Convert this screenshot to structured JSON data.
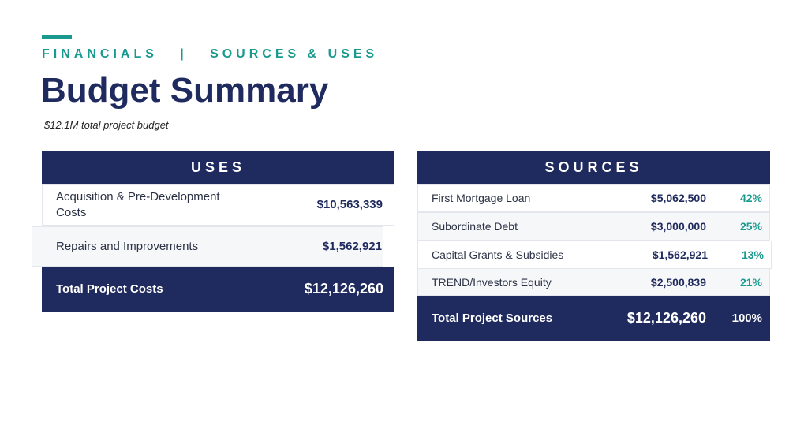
{
  "header": {
    "section": "FINANCIALS",
    "separator": "|",
    "subsection": "SOURCES & USES",
    "title": "Budget Summary",
    "subtitle": "$12.1M total project budget"
  },
  "uses": {
    "heading": "USES",
    "rows": [
      [
        "Acquisition & Pre-Development Costs",
        "$10,563,339"
      ],
      [
        "Repairs and Improvements",
        "$1,562,921"
      ]
    ],
    "total": [
      "Total Project Costs",
      "$12,126,260"
    ]
  },
  "sources": {
    "heading": "SOURCES",
    "rows": [
      [
        "First Mortgage Loan",
        "$5,062,500",
        "42%"
      ],
      [
        "Subordinate Debt",
        "$3,000,000",
        "25%"
      ],
      [
        "Capital Grants & Subsidies",
        "$1,562,921",
        "13%"
      ],
      [
        "TREND/Investors Equity",
        "$2,500,839",
        "21%"
      ]
    ],
    "total": [
      "Total Project Sources",
      "$12,126,260",
      "100%"
    ]
  }
}
